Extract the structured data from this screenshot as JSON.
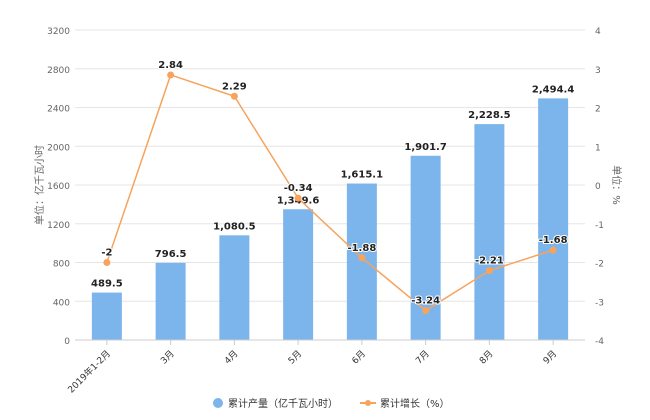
{
  "chart_data": {
    "type": "bar+line",
    "categories": [
      "2019年1-2月",
      "3月",
      "4月",
      "5月",
      "6月",
      "7月",
      "8月",
      "9月"
    ],
    "series": [
      {
        "name": "累计产量（亿千瓦小时）",
        "type": "bar",
        "axis": "left",
        "color": "#7cb5ec",
        "values": [
          489.5,
          796.5,
          1080.5,
          1349.6,
          1615.1,
          1901.7,
          2228.5,
          2494.4
        ],
        "labels": [
          "489.5",
          "796.5",
          "1,080.5",
          "1,349.6",
          "1,615.1",
          "1,901.7",
          "2,228.5",
          "2,494.4"
        ]
      },
      {
        "name": "累计增长（%）",
        "type": "line",
        "axis": "right",
        "color": "#f7a35c",
        "values": [
          -2,
          2.84,
          2.29,
          -0.34,
          -1.88,
          -3.24,
          -2.21,
          -1.68
        ],
        "labels": [
          "-2",
          "2.84",
          "2.29",
          "-0.34",
          "-1.88",
          "-3.24",
          "-2.21",
          "-1.68"
        ]
      }
    ],
    "ylabel": "单位：亿千瓦小时",
    "y2label": "单位：%",
    "ylim": [
      0,
      3200
    ],
    "y2lim": [
      -4,
      4
    ],
    "yticks": [
      "0",
      "400",
      "800",
      "1200",
      "1600",
      "2000",
      "2400",
      "2800",
      "3200"
    ],
    "y2ticks": [
      "-4",
      "-3",
      "-2",
      "-1",
      "0",
      "1",
      "2",
      "3",
      "4"
    ],
    "grid": true,
    "legend_position": "bottom"
  }
}
